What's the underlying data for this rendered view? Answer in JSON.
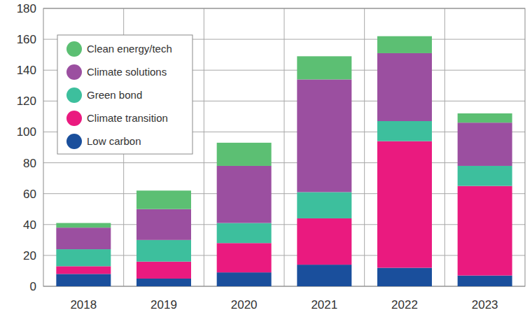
{
  "chart_data": {
    "type": "bar",
    "stacked": true,
    "grid": true,
    "legend": "top-left",
    "categories": [
      "2018",
      "2019",
      "2020",
      "2021",
      "2022",
      "2023"
    ],
    "series": [
      {
        "name": "Low carbon",
        "color": "#1a4f9c",
        "values": [
          8,
          5,
          9,
          14,
          12,
          7
        ]
      },
      {
        "name": "Climate transition",
        "color": "#ea1a7f",
        "values": [
          5,
          11,
          19,
          30,
          82,
          58
        ]
      },
      {
        "name": "Green bond",
        "color": "#3dbf9d",
        "values": [
          11,
          14,
          13,
          17,
          13,
          13
        ]
      },
      {
        "name": "Climate solutions",
        "color": "#9b4fa0",
        "values": [
          14,
          20,
          37,
          73,
          44,
          28
        ]
      },
      {
        "name": "Clean energy/tech",
        "color": "#5cbf73",
        "values": [
          3,
          12,
          15,
          15,
          11,
          6
        ]
      }
    ],
    "ylim": [
      0,
      180
    ],
    "yticks": [
      0,
      20,
      40,
      60,
      80,
      100,
      120,
      140,
      160,
      180
    ]
  }
}
